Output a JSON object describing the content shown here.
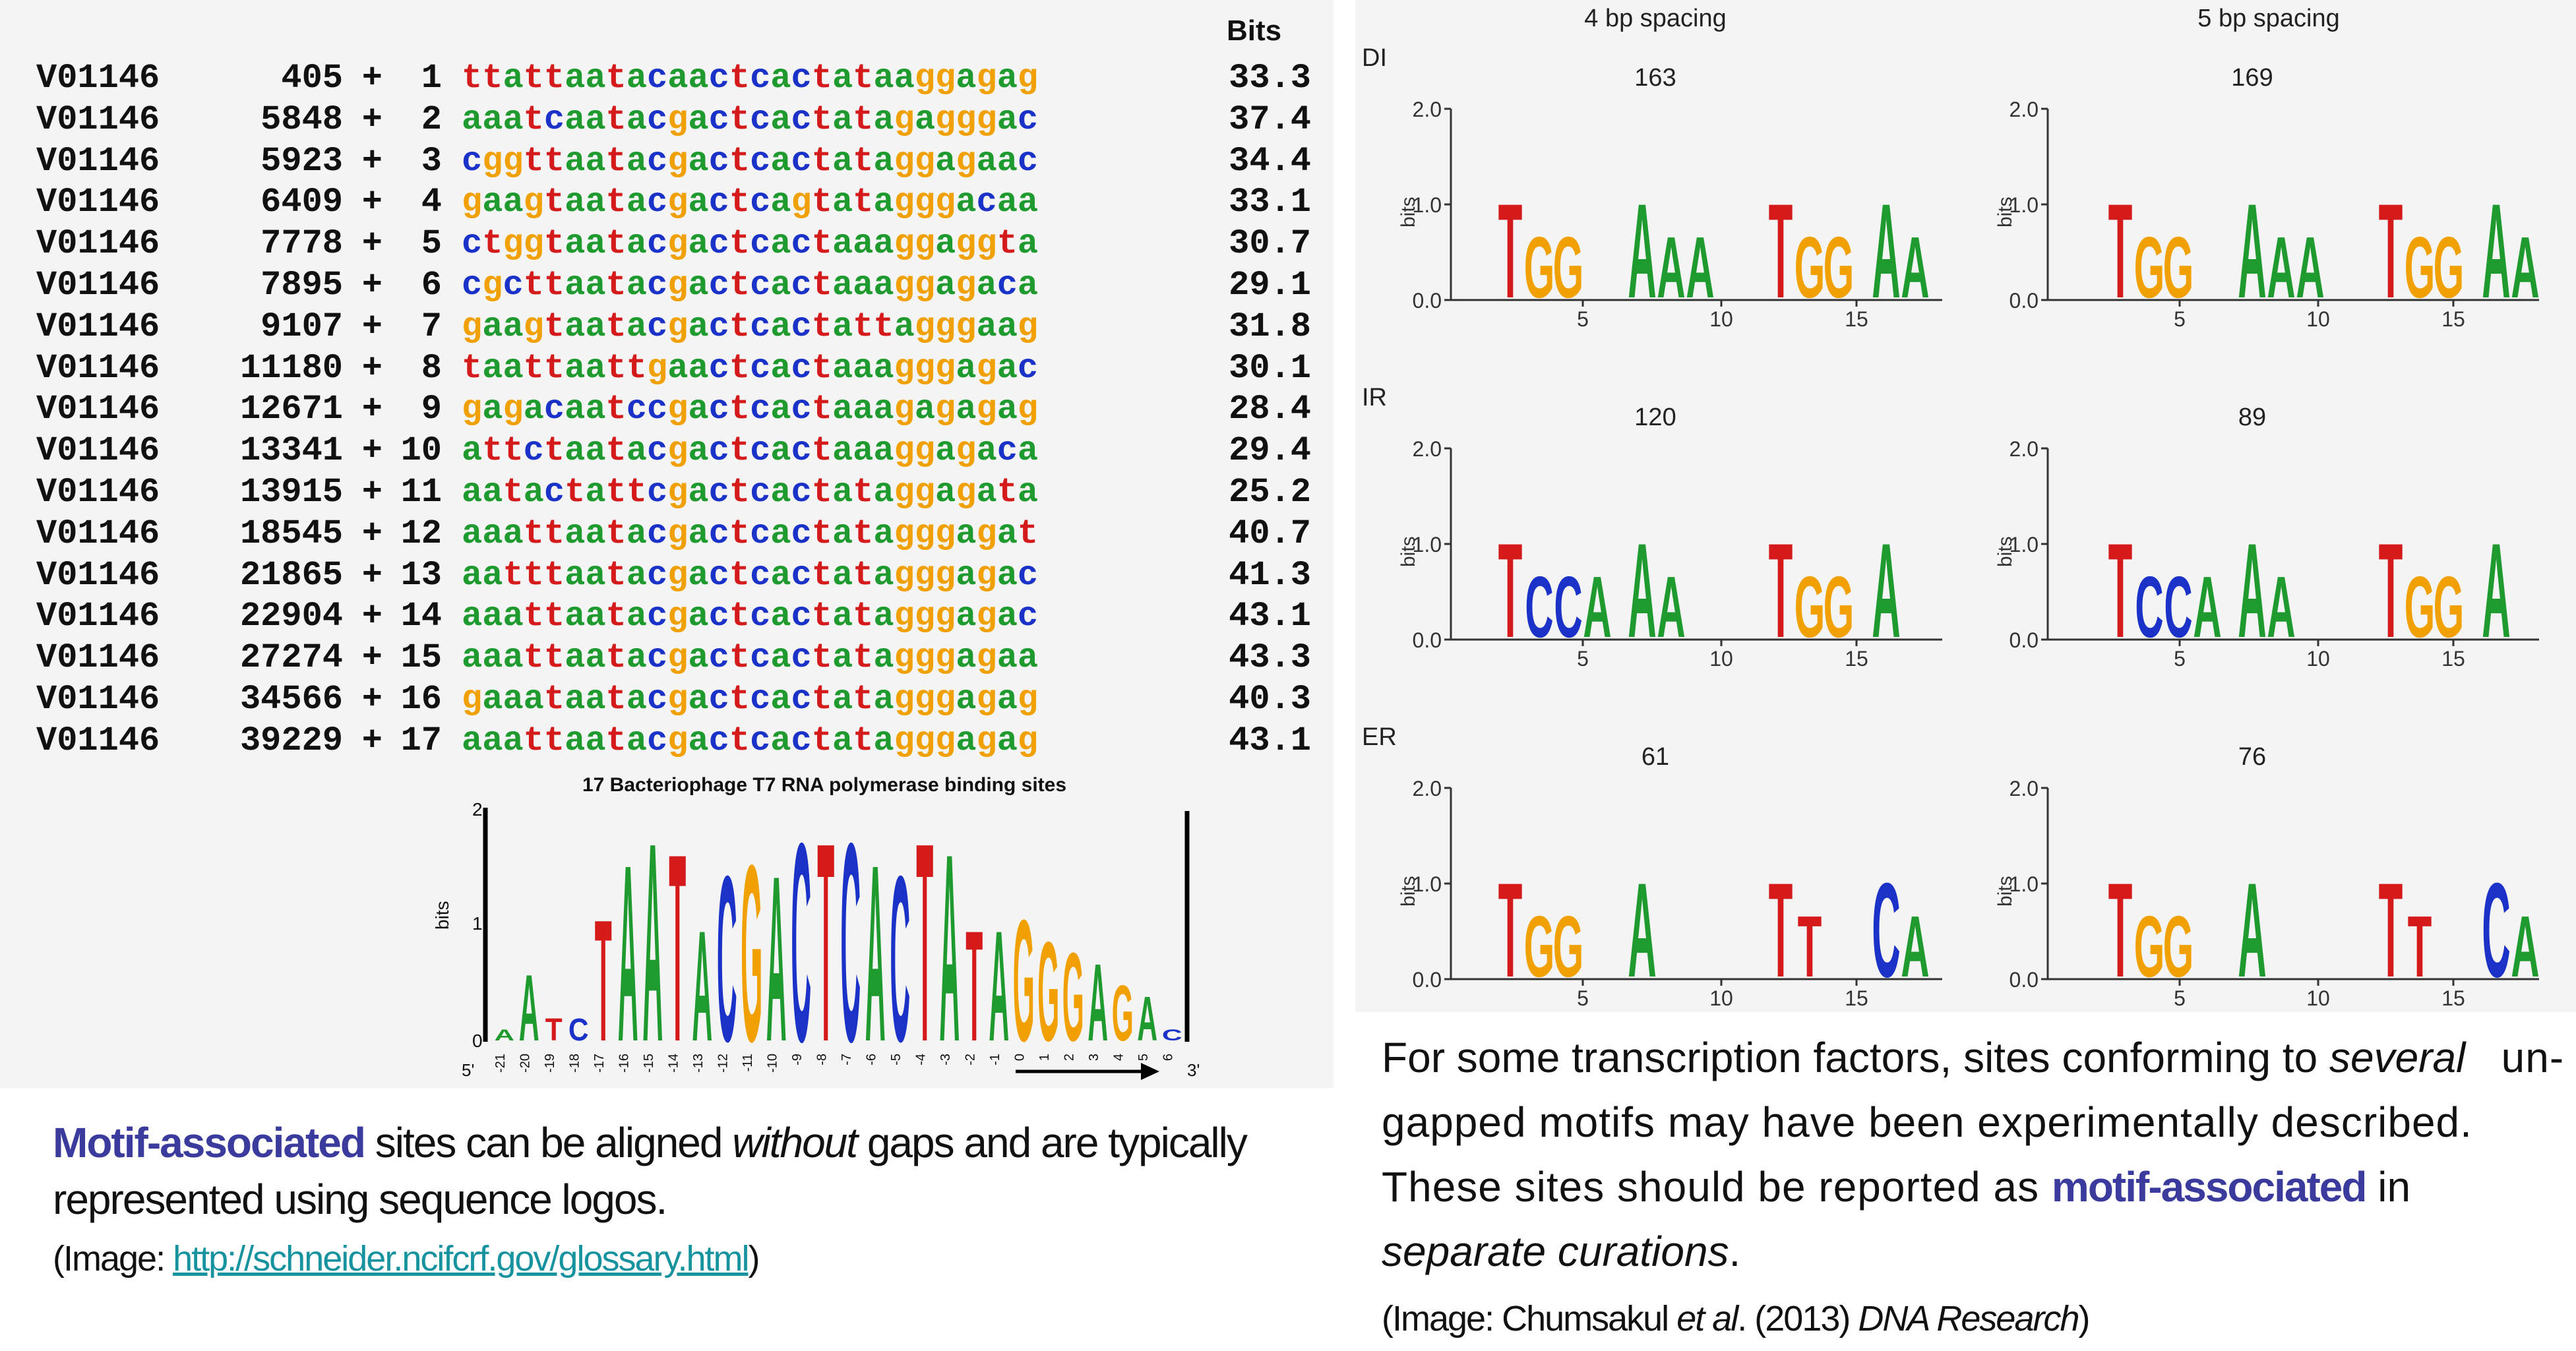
{
  "left": {
    "bits_header": "Bits",
    "sequences": [
      {
        "acc": "V01146",
        "pos": "405",
        "strand": "+",
        "idx": "1",
        "seq": "ttattaatacaactcactataaggagag",
        "bits": "33.3"
      },
      {
        "acc": "V01146",
        "pos": "5848",
        "strand": "+",
        "idx": "2",
        "seq": "aaatcaatacgactcactatagagggac",
        "bits": "37.4"
      },
      {
        "acc": "V01146",
        "pos": "5923",
        "strand": "+",
        "idx": "3",
        "seq": "cggttaatacgactcactataggagaac",
        "bits": "34.4"
      },
      {
        "acc": "V01146",
        "pos": "6409",
        "strand": "+",
        "idx": "4",
        "seq": "gaagtaatacgactcagtatagggacaa",
        "bits": "33.1"
      },
      {
        "acc": "V01146",
        "pos": "7778",
        "strand": "+",
        "idx": "5",
        "seq": "ctggtaatacgactcactaaaggaggta",
        "bits": "30.7"
      },
      {
        "acc": "V01146",
        "pos": "7895",
        "strand": "+",
        "idx": "6",
        "seq": "cgcttaatacgactcactaaaggagaca",
        "bits": "29.1"
      },
      {
        "acc": "V01146",
        "pos": "9107",
        "strand": "+",
        "idx": "7",
        "seq": "gaagtaatacgactcactattagggaag",
        "bits": "31.8"
      },
      {
        "acc": "V01146",
        "pos": "11180",
        "strand": "+",
        "idx": "8",
        "seq": "taattaattgaactcactaaagggagac",
        "bits": "30.1"
      },
      {
        "acc": "V01146",
        "pos": "12671",
        "strand": "+",
        "idx": "9",
        "seq": "gagacaatccgactcactaaagagagag",
        "bits": "28.4"
      },
      {
        "acc": "V01146",
        "pos": "13341",
        "strand": "+",
        "idx": "10",
        "seq": "attctaatacgactcactaaaggagaca",
        "bits": "29.4"
      },
      {
        "acc": "V01146",
        "pos": "13915",
        "strand": "+",
        "idx": "11",
        "seq": "aatactattcgactcactataggagata",
        "bits": "25.2"
      },
      {
        "acc": "V01146",
        "pos": "18545",
        "strand": "+",
        "idx": "12",
        "seq": "aaattaatacgactcactatagggagat",
        "bits": "40.7"
      },
      {
        "acc": "V01146",
        "pos": "21865",
        "strand": "+",
        "idx": "13",
        "seq": "aatttaatacgactcactatagggagac",
        "bits": "41.3"
      },
      {
        "acc": "V01146",
        "pos": "22904",
        "strand": "+",
        "idx": "14",
        "seq": "aaattaatacgactcactatagggagac",
        "bits": "43.1"
      },
      {
        "acc": "V01146",
        "pos": "27274",
        "strand": "+",
        "idx": "15",
        "seq": "aaattaatacgactcactatagggagaa",
        "bits": "43.3"
      },
      {
        "acc": "V01146",
        "pos": "34566",
        "strand": "+",
        "idx": "16",
        "seq": "gaaataatacgactcactatagggagag",
        "bits": "40.3"
      },
      {
        "acc": "V01146",
        "pos": "39229",
        "strand": "+",
        "idx": "17",
        "seq": "aaattaatacgactcactatagggagag",
        "bits": "43.1"
      }
    ],
    "logo": {
      "title": "17 Bacteriophage T7 RNA polymerase binding sites",
      "ylabel": "bits",
      "yticks": [
        "0",
        "1",
        "2"
      ],
      "xticks": [
        "-21",
        "-20",
        "-19",
        "-18",
        "-17",
        "-16",
        "-15",
        "-14",
        "-13",
        "-12",
        "-11",
        "-10",
        "-9",
        "-8",
        "-7",
        "-6",
        "-5",
        "-4",
        "-3",
        "-2",
        "-1",
        "0",
        "1",
        "2",
        "3",
        "4",
        "5",
        "6"
      ],
      "end5": "5'",
      "end3": "3'"
    },
    "caption": {
      "highlight": "Motif-associated",
      "text1": " sites can be aligned ",
      "italic": "without",
      "text2": " gaps and are typically represented using sequence logos.",
      "image_prefix": "(Image: ",
      "link": "http://schneider.ncifcrf.gov/glossary.html",
      "image_suffix": ")"
    }
  },
  "right": {
    "col_headers": [
      "4 bp spacing",
      "5 bp spacing"
    ],
    "rows": [
      {
        "label": "DI",
        "counts": [
          "163",
          "169"
        ]
      },
      {
        "label": "IR",
        "counts": [
          "120",
          "89"
        ]
      },
      {
        "label": "ER",
        "counts": [
          "61",
          "76"
        ]
      }
    ],
    "yticks": [
      "0.0",
      "1.0",
      "2.0"
    ],
    "xticks": [
      "5",
      "10",
      "15"
    ],
    "ylabel": "bits",
    "caption": {
      "text1": "For some transcription factors, sites conforming to ",
      "italic1": "several",
      "text2": " un-gapped motifs may have been experimentally described. These sites should be reported as ",
      "highlight": "motif-associated",
      "text3": " in ",
      "italic2": "separate curations",
      "text4": ".",
      "image_prefix": "(Image: Chumsakul ",
      "image_italic": "et al",
      "image_mid": ". (2013) ",
      "image_journal": "DNA Research",
      "image_suffix": ")"
    }
  },
  "colors": {
    "A": "#1e9a2f",
    "C": "#1a32c8",
    "G": "#f0a000",
    "T": "#d41a1a",
    "highlight": "#3b3b9e",
    "link": "#16939e"
  }
}
